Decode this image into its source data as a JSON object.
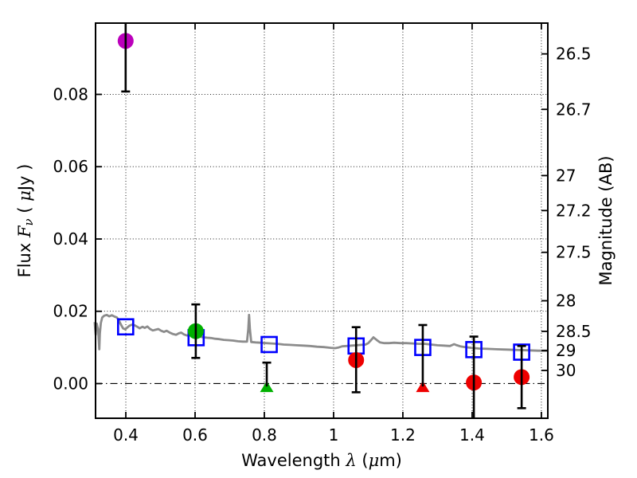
{
  "chart_data": {
    "type": "scatter",
    "title": "",
    "xlabel": "Wavelength λ (μm)",
    "ylabel_left": "Flux Fν (μJy)",
    "ylabel_right": "Magnitude (AB)",
    "xlabel_parts": [
      {
        "t": "Wavelength  "
      },
      {
        "t": "λ",
        "i": true
      },
      {
        "t": " ("
      },
      {
        "t": "μ",
        "i": true
      },
      {
        "t": "m)"
      }
    ],
    "ylabel_left_parts": [
      {
        "t": "Flux  "
      },
      {
        "t": "F",
        "i": true
      },
      {
        "t": "ν",
        "i": true,
        "sub": true
      },
      {
        "t": "  ( "
      },
      {
        "t": "μ",
        "i": true
      },
      {
        "t": "Jy )"
      }
    ],
    "xlim": [
      0.3126,
      1.6186
    ],
    "ylim": [
      -0.00959,
      0.09972
    ],
    "x_ticks": [
      0.4,
      0.6,
      0.8,
      1.0,
      1.2,
      1.4,
      1.6
    ],
    "x_tick_labels": [
      "0.4",
      "0.6",
      "0.8",
      "1",
      "1.2",
      "1.4",
      "1.6"
    ],
    "y_ticks": [
      0.0,
      0.02,
      0.04,
      0.06,
      0.08
    ],
    "y_tick_labels": [
      "0.00",
      "0.02",
      "0.04",
      "0.06",
      "0.08"
    ],
    "right_ticks": [
      {
        "label": "26.5",
        "flux": 0.0912
      },
      {
        "label": "26.7",
        "flux": 0.07586
      },
      {
        "label": "27",
        "flux": 0.05754
      },
      {
        "label": "27.2",
        "flux": 0.04786
      },
      {
        "label": "27.5",
        "flux": 0.03631
      },
      {
        "label": "28",
        "flux": 0.02291
      },
      {
        "label": "28.5",
        "flux": 0.01445
      },
      {
        "label": "29",
        "flux": 0.00912
      },
      {
        "label": "30",
        "flux": 0.00363
      }
    ],
    "grid": {
      "style": "dotted",
      "zero_line_style": "dash-dot",
      "color": "#000000"
    },
    "legend": "none",
    "colors": {
      "spectrum": "#8c8c8c",
      "model_square": "#0000ff",
      "magenta_point": "#bb00bb",
      "green_point": "#00b000",
      "red_point": "#ee0000",
      "error_bar": "#000000",
      "frame": "#000000"
    },
    "series": [
      {
        "name": "model_spectrum",
        "type": "line",
        "color": "#8c8c8c",
        "x": [
          0.31,
          0.3115,
          0.313,
          0.3145,
          0.316,
          0.318,
          0.32,
          0.322,
          0.3235,
          0.325,
          0.328,
          0.332,
          0.338,
          0.345,
          0.352,
          0.36,
          0.368,
          0.374,
          0.38,
          0.386,
          0.392,
          0.398,
          0.404,
          0.41,
          0.418,
          0.426,
          0.433,
          0.44,
          0.448,
          0.455,
          0.462,
          0.47,
          0.478,
          0.486,
          0.494,
          0.502,
          0.51,
          0.518,
          0.527,
          0.536,
          0.545,
          0.553,
          0.56,
          0.568,
          0.576,
          0.585,
          0.594,
          0.603,
          0.613,
          0.623,
          0.634,
          0.646,
          0.658,
          0.67,
          0.683,
          0.696,
          0.71,
          0.724,
          0.738,
          0.75,
          0.7535,
          0.756,
          0.7585,
          0.762,
          0.775,
          0.79,
          0.805,
          0.82,
          0.838,
          0.856,
          0.874,
          0.893,
          0.912,
          0.932,
          0.952,
          0.972,
          0.992,
          1.005,
          1.015,
          1.025,
          1.038,
          1.052,
          1.066,
          1.08,
          1.092,
          1.1,
          1.108,
          1.115,
          1.124,
          1.134,
          1.146,
          1.16,
          1.175,
          1.192,
          1.21,
          1.228,
          1.246,
          1.264,
          1.282,
          1.3,
          1.318,
          1.336,
          1.348,
          1.356,
          1.366,
          1.38,
          1.398,
          1.42,
          1.445,
          1.47,
          1.5,
          1.53,
          1.56,
          1.59,
          1.618
        ],
        "y": [
          0.017,
          0.0152,
          0.0135,
          0.0158,
          0.0166,
          0.0158,
          0.015,
          0.0118,
          0.0095,
          0.0138,
          0.0168,
          0.0183,
          0.0188,
          0.019,
          0.0186,
          0.0189,
          0.0185,
          0.0183,
          0.0175,
          0.0163,
          0.0153,
          0.015,
          0.0155,
          0.016,
          0.0163,
          0.0161,
          0.0157,
          0.0153,
          0.0157,
          0.0154,
          0.0158,
          0.0151,
          0.0147,
          0.0149,
          0.0151,
          0.0146,
          0.0143,
          0.0146,
          0.0141,
          0.0137,
          0.0135,
          0.0139,
          0.0141,
          0.0136,
          0.0133,
          0.0134,
          0.0133,
          0.0132,
          0.013,
          0.0128,
          0.0127,
          0.0126,
          0.0124,
          0.0123,
          0.0121,
          0.012,
          0.0119,
          0.0117,
          0.0116,
          0.0116,
          0.015,
          0.019,
          0.015,
          0.0115,
          0.0114,
          0.0113,
          0.0112,
          0.0111,
          0.011,
          0.0108,
          0.0107,
          0.0106,
          0.0105,
          0.0104,
          0.0102,
          0.0101,
          0.0099,
          0.0098,
          0.01,
          0.0103,
          0.0104,
          0.0105,
          0.0106,
          0.0107,
          0.0108,
          0.0112,
          0.012,
          0.0128,
          0.0121,
          0.0114,
          0.0112,
          0.0112,
          0.0113,
          0.0112,
          0.0112,
          0.0111,
          0.011,
          0.011,
          0.0108,
          0.0106,
          0.0105,
          0.0104,
          0.0109,
          0.0106,
          0.0103,
          0.0101,
          0.0099,
          0.0097,
          0.0096,
          0.0095,
          0.0094,
          0.0093,
          0.0092,
          0.0091,
          0.0091
        ]
      },
      {
        "name": "model_photometry",
        "type": "scatter",
        "marker": "open-square",
        "color": "#0000ff",
        "points": [
          {
            "x": 0.3995,
            "y": 0.0157
          },
          {
            "x": 0.603,
            "y": 0.0127
          },
          {
            "x": 0.814,
            "y": 0.0108
          },
          {
            "x": 1.065,
            "y": 0.0104
          },
          {
            "x": 1.2575,
            "y": 0.01
          },
          {
            "x": 1.405,
            "y": 0.0094
          },
          {
            "x": 1.543,
            "y": 0.0087
          }
        ]
      },
      {
        "name": "observed_photometry",
        "type": "scatter-errorbar",
        "points": [
          {
            "x": 0.3995,
            "y": 0.0948,
            "err_lo": 0.014,
            "err_hi": 0.014,
            "marker": "circle",
            "color": "#bb00bb"
          },
          {
            "x": 0.602,
            "y": 0.0145,
            "err_lo": 0.0074,
            "err_hi": 0.0074,
            "marker": "circle",
            "color": "#00b000"
          },
          {
            "x": 0.807,
            "y": -0.0008,
            "err_lo": 0.0,
            "err_hi": 0.0066,
            "marker": "triangle-up",
            "color": "#00b000"
          },
          {
            "x": 1.065,
            "y": 0.0065,
            "err_lo": 0.0089,
            "err_hi": 0.0091,
            "marker": "circle",
            "color": "#ee0000"
          },
          {
            "x": 1.2575,
            "y": -0.0008,
            "err_lo": 0.0,
            "err_hi": 0.017,
            "marker": "triangle-up",
            "color": "#ee0000"
          },
          {
            "x": 1.405,
            "y": 0.0003,
            "err_lo": 0.0135,
            "err_hi": 0.0127,
            "marker": "circle",
            "color": "#ee0000"
          },
          {
            "x": 1.543,
            "y": 0.0018,
            "err_lo": 0.0086,
            "err_hi": 0.0086,
            "marker": "circle",
            "color": "#ee0000"
          }
        ]
      }
    ]
  }
}
